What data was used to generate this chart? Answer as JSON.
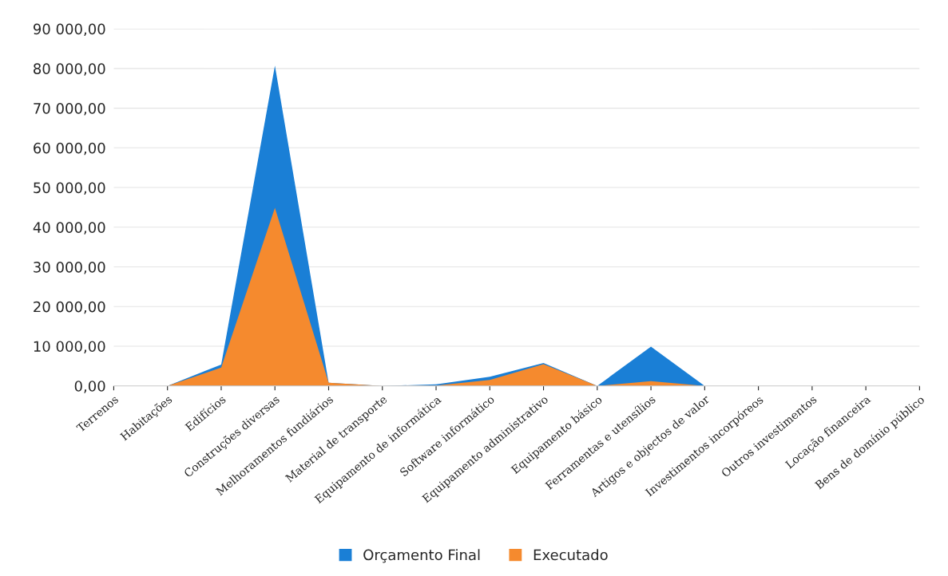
{
  "chart_data": {
    "type": "area",
    "categories": [
      "Terrenos",
      "Habitações",
      "Edifícios",
      "Construções diversas",
      "Melhoramentos fundiários",
      "Material de transporte",
      "Equipamento de informática",
      "Software informático",
      "Equipamento administrativo",
      "Equipamento básico",
      "Ferramentas e utensílios",
      "Artigos e objectos de valor",
      "Investimentos incorpóreos",
      "Outros investimentos",
      "Locação financeira",
      "Bens de domínio público"
    ],
    "series": [
      {
        "name": "Orçamento Final",
        "color": "#1a7fd6",
        "values": [
          null,
          0,
          5400,
          80700,
          800,
          0,
          400,
          2300,
          5800,
          0,
          9900,
          0,
          0,
          0,
          0,
          0
        ]
      },
      {
        "name": "Executado",
        "color": "#f58a2e",
        "values": [
          null,
          0,
          4600,
          44900,
          800,
          0,
          100,
          1500,
          5500,
          0,
          1200,
          0,
          0,
          0,
          0,
          0
        ]
      }
    ],
    "ylim": [
      0,
      90000
    ],
    "yticks": [
      {
        "value": 0,
        "label": "0,00"
      },
      {
        "value": 10000,
        "label": "10 000,00"
      },
      {
        "value": 20000,
        "label": "20 000,00"
      },
      {
        "value": 30000,
        "label": "30 000,00"
      },
      {
        "value": 40000,
        "label": "40 000,00"
      },
      {
        "value": 50000,
        "label": "50 000,00"
      },
      {
        "value": 60000,
        "label": "60 000,00"
      },
      {
        "value": 70000,
        "label": "70 000,00"
      },
      {
        "value": 80000,
        "label": "80 000,00"
      },
      {
        "value": 90000,
        "label": "90 000,00"
      }
    ],
    "grid": "y",
    "legend": "bottom"
  }
}
